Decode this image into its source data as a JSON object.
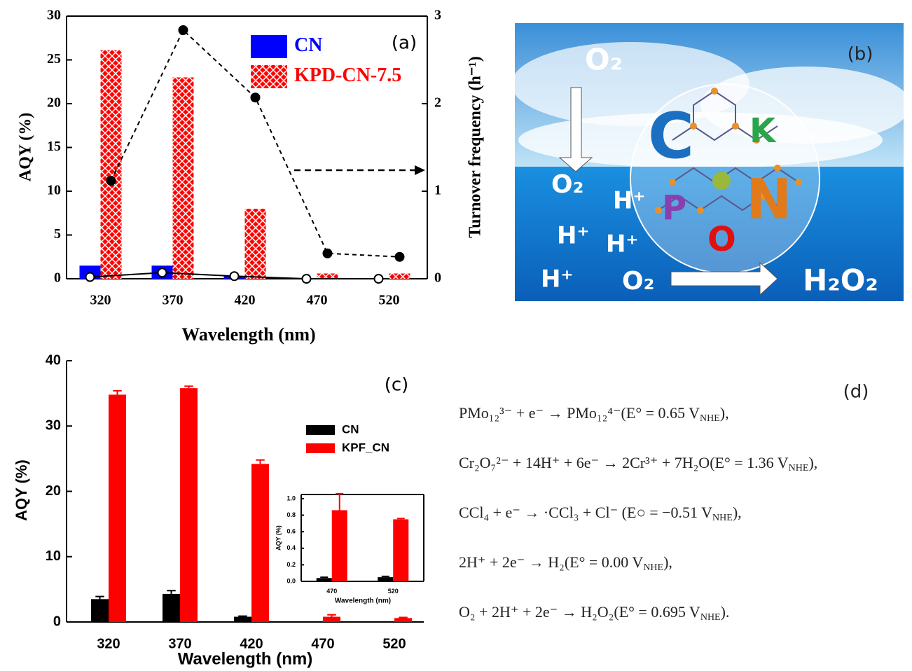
{
  "chart_data": [
    {
      "type": "bar",
      "panel_label": "(a)",
      "x_label": "Wavelength (nm)",
      "y_label": "AQY (%)",
      "y2_label": "Turnover frequency (h⁻¹)",
      "categories": [
        "320",
        "370",
        "420",
        "470",
        "520"
      ],
      "series": [
        {
          "name": "CN",
          "color": "#0000ff",
          "values": [
            1.5,
            1.5,
            0.3,
            0,
            0
          ]
        },
        {
          "name": "KPD-CN-7.5",
          "color": "#ff0000",
          "hatch": true,
          "values": [
            26.1,
            23.0,
            8.0,
            0.6,
            0.6
          ]
        },
        {
          "type": "line",
          "axis": "y2",
          "color": "#000000",
          "marker": "open",
          "values": [
            0.02,
            0.07,
            0.03,
            0,
            0
          ]
        },
        {
          "type": "line",
          "axis": "y2",
          "color": "#000000",
          "marker": "filled",
          "linestyle": "dashed",
          "values": [
            1.12,
            2.84,
            2.07,
            0.29,
            0.25
          ]
        }
      ],
      "ylim": [
        0,
        30
      ],
      "yticks": [
        0,
        5,
        10,
        15,
        20,
        25,
        30
      ],
      "y2lim": [
        0,
        3
      ],
      "y2ticks": [
        0,
        1,
        2,
        3
      ]
    },
    {
      "type": "bar",
      "panel_label": "(c)",
      "x_label": "Wavelength (nm)",
      "y_label": "AQY (%)",
      "categories": [
        "320",
        "370",
        "420",
        "470",
        "520"
      ],
      "series": [
        {
          "name": "CN",
          "color": "#000000",
          "values": [
            3.5,
            4.3,
            0.8,
            0,
            0
          ],
          "errors": [
            0.4,
            0.5,
            0.1,
            0,
            0
          ]
        },
        {
          "name": "KPF_CN",
          "color": "#ff0000",
          "values": [
            34.8,
            35.8,
            24.2,
            0.8,
            0.6
          ],
          "errors": [
            0.6,
            0.3,
            0.6,
            0.3,
            0.1
          ]
        }
      ],
      "ylim": [
        0,
        40
      ],
      "yticks": [
        0,
        10,
        20,
        30,
        40
      ]
    },
    {
      "type": "bar",
      "x_label": "Wavelength (nm)",
      "y_label": "AQY (%)",
      "categories": [
        "470",
        "520"
      ],
      "series": [
        {
          "color": "#000000",
          "values": [
            0.04,
            0.05
          ],
          "errors": [
            0.01,
            0.01
          ]
        },
        {
          "color": "#ff0000",
          "values": [
            0.86,
            0.75
          ],
          "errors": [
            0.2,
            0.01
          ]
        }
      ],
      "ylim": [
        0,
        1.05
      ],
      "yticks": [
        {
          "value": 0,
          "label": "0.0"
        },
        0.2,
        0.4,
        0.6,
        0.8,
        {
          "value": 1,
          "label": "1.0"
        }
      ]
    }
  ],
  "illustration": {
    "panel_label": "(b)",
    "texts": [
      "O₂",
      "O₂",
      "H⁺",
      "H⁺",
      "H⁺",
      "H⁺",
      "O₂",
      "H₂O₂",
      "C",
      "K",
      "P",
      "N",
      "O"
    ]
  },
  "equations": {
    "panel_label": "(d)",
    "lines": [
      {
        "main": "PMo₁₂³⁻ + e⁻ → PMo₁₂⁴⁻(E° = 0.65 V",
        "sub": "NHE",
        "end": "),"
      },
      {
        "main": "Cr₂O₇²⁻ + 14H⁺ + 6e⁻ → 2Cr³⁺ + 7H₂O(E° = 1.36 V",
        "sub": "NHE",
        "end": "),"
      },
      {
        "main": "CCl₄ + e⁻ → ·CCl₃ + Cl⁻   (E○ = −0.51 V",
        "sub": "NHE",
        "end": "),"
      },
      {
        "main": "2H⁺ + 2e⁻ → H₂(E° = 0.00 V",
        "sub": "NHE",
        "end": "),"
      },
      {
        "main": "O₂ + 2H⁺ + 2e⁻ → H₂O₂(E° = 0.695 V",
        "sub": "NHE",
        "end": ")."
      }
    ]
  }
}
